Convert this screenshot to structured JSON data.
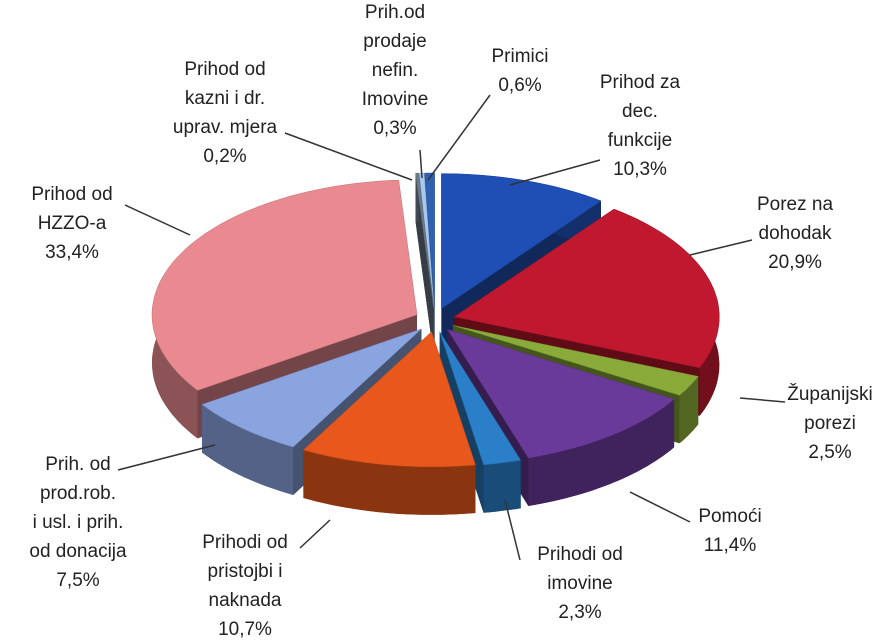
{
  "chart_data": {
    "type": "pie",
    "categories": [
      [
        "Prihod za",
        "dec.",
        "funkcije"
      ],
      [
        "Porez na",
        "dohodak"
      ],
      [
        "Županijski",
        "porezi"
      ],
      [
        "Pomoći"
      ],
      [
        "Prihodi od",
        "imovine"
      ],
      [
        "Prihodi od",
        "pristojbi i",
        "naknada"
      ],
      [
        "Prih. od",
        "prod.rob.",
        "i usl. i prih.",
        "od donacija"
      ],
      [
        "Prihod od",
        "HZZO-a"
      ],
      [
        "Prihod od",
        "kazni i dr.",
        "uprav. mjera"
      ],
      [
        "Prih.od",
        "prodaje",
        "nefin.",
        "Imovine"
      ],
      [
        "Primici"
      ]
    ],
    "values": [
      10.3,
      20.9,
      2.5,
      11.4,
      2.3,
      10.7,
      7.5,
      33.4,
      0.2,
      0.3,
      0.6
    ],
    "value_labels": [
      "10,3%",
      "20,9%",
      "2,5%",
      "11,4%",
      "2,3%",
      "10,7%",
      "7,5%",
      "33,4%",
      "0,2%",
      "0,3%",
      "0,6%"
    ],
    "colors": [
      "#1f4fb4",
      "#c0182e",
      "#8aab3a",
      "#6a3a9a",
      "#2a7fc8",
      "#e8571b",
      "#8aa4e0",
      "#e88a90",
      "#6c7a8a",
      "#a8c8f0",
      "#3060b0"
    ]
  }
}
